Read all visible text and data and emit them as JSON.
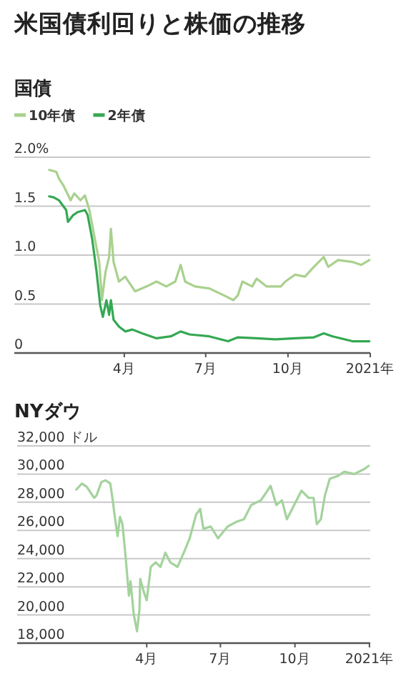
{
  "chart_data": [
    {
      "type": "line",
      "title": "米国債利回りと株価の推移",
      "subtitle": "国債",
      "legend": "top left",
      "grid": "y",
      "marker": "none",
      "line_style": "solid",
      "xlim": [
        "2019-11-30",
        "2021-01-01"
      ],
      "xticks": [
        {
          "value": "2020-04-01",
          "label": "4月"
        },
        {
          "value": "2020-07-01",
          "label": "7月"
        },
        {
          "value": "2020-10-01",
          "label": "10月"
        },
        {
          "value": "2021-01-01",
          "label": "2021年"
        }
      ],
      "ylim": [
        0,
        2.0
      ],
      "yticks": [
        {
          "value": 0,
          "label": "0"
        },
        {
          "value": 0.5,
          "label": "0.5"
        },
        {
          "value": 1.0,
          "label": "1.0"
        },
        {
          "value": 1.5,
          "label": "1.5"
        },
        {
          "value": 2.0,
          "label": "2.0%"
        }
      ],
      "series": [
        {
          "name": "10年債",
          "color": "#a9d18e",
          "x": [
            "2020-01-08",
            "2020-01-16",
            "2020-01-19",
            "2020-01-24",
            "2020-02-01",
            "2020-02-05",
            "2020-02-12",
            "2020-02-17",
            "2020-02-22",
            "2020-02-28",
            "2020-03-04",
            "2020-03-07",
            "2020-03-11",
            "2020-03-15",
            "2020-03-17",
            "2020-03-20",
            "2020-03-26",
            "2020-04-02",
            "2020-04-13",
            "2020-04-26",
            "2020-05-07",
            "2020-05-18",
            "2020-05-28",
            "2020-06-03",
            "2020-06-08",
            "2020-06-19",
            "2020-07-05",
            "2020-07-21",
            "2020-08-01",
            "2020-08-06",
            "2020-08-11",
            "2020-08-22",
            "2020-08-27",
            "2020-09-07",
            "2020-09-23",
            "2020-09-28",
            "2020-10-09",
            "2020-10-20",
            "2020-10-30",
            "2020-11-10",
            "2020-11-15",
            "2020-11-26",
            "2020-12-12",
            "2020-12-22",
            "2020-12-31"
          ],
          "values": [
            1.87,
            1.85,
            1.78,
            1.71,
            1.56,
            1.63,
            1.56,
            1.61,
            1.46,
            1.17,
            0.93,
            0.54,
            0.83,
            0.98,
            1.27,
            0.93,
            0.73,
            0.78,
            0.63,
            0.68,
            0.73,
            0.68,
            0.73,
            0.9,
            0.73,
            0.68,
            0.66,
            0.59,
            0.54,
            0.59,
            0.73,
            0.68,
            0.76,
            0.68,
            0.68,
            0.73,
            0.8,
            0.78,
            0.88,
            0.98,
            0.88,
            0.95,
            0.93,
            0.9,
            0.95
          ]
        },
        {
          "name": "2年債",
          "color": "#34a853",
          "x": [
            "2020-01-08",
            "2020-01-13",
            "2020-01-19",
            "2020-01-27",
            "2020-01-29",
            "2020-02-04",
            "2020-02-09",
            "2020-02-17",
            "2020-02-20",
            "2020-02-25",
            "2020-03-01",
            "2020-03-05",
            "2020-03-08",
            "2020-03-12",
            "2020-03-15",
            "2020-03-17",
            "2020-03-20",
            "2020-03-26",
            "2020-04-02",
            "2020-04-10",
            "2020-04-21",
            "2020-05-07",
            "2020-05-23",
            "2020-06-03",
            "2020-06-13",
            "2020-07-05",
            "2020-07-26",
            "2020-08-06",
            "2020-08-27",
            "2020-09-17",
            "2020-10-09",
            "2020-10-30",
            "2020-11-10",
            "2020-11-20",
            "2020-12-12",
            "2020-12-31"
          ],
          "values": [
            1.6,
            1.59,
            1.56,
            1.46,
            1.34,
            1.41,
            1.44,
            1.46,
            1.41,
            1.17,
            0.83,
            0.49,
            0.37,
            0.54,
            0.39,
            0.54,
            0.34,
            0.27,
            0.22,
            0.24,
            0.2,
            0.15,
            0.17,
            0.22,
            0.19,
            0.17,
            0.12,
            0.16,
            0.15,
            0.14,
            0.15,
            0.16,
            0.2,
            0.17,
            0.12,
            0.12
          ]
        }
      ]
    },
    {
      "type": "line",
      "title": "NYダウ",
      "grid": "y",
      "marker": "none",
      "line_style": "solid",
      "xlim": [
        "2019-10-24",
        "2021-01-02"
      ],
      "xticks": [
        {
          "value": "2020-04-01",
          "label": "4月"
        },
        {
          "value": "2020-07-01",
          "label": "7月"
        },
        {
          "value": "2020-10-01",
          "label": "10月"
        },
        {
          "value": "2021-01-01",
          "label": "2021年"
        }
      ],
      "ylim": [
        18000,
        32000
      ],
      "yticks": [
        {
          "value": 18000,
          "label": "18,000"
        },
        {
          "value": 20000,
          "label": "20,000"
        },
        {
          "value": 22000,
          "label": "22,000"
        },
        {
          "value": 24000,
          "label": "24,000"
        },
        {
          "value": 26000,
          "label": "26,000"
        },
        {
          "value": 28000,
          "label": "28,000"
        },
        {
          "value": 30000,
          "label": "30,000"
        },
        {
          "value": 32000,
          "label": "32,000 ドル"
        }
      ],
      "series": [
        {
          "color": "#a3d39c",
          "x": [
            "2020-01-05",
            "2020-01-12",
            "2020-01-18",
            "2020-01-27",
            "2020-01-30",
            "2020-02-05",
            "2020-02-10",
            "2020-02-16",
            "2020-02-19",
            "2020-02-22",
            "2020-02-25",
            "2020-02-28",
            "2020-03-02",
            "2020-03-06",
            "2020-03-10",
            "2020-03-12",
            "2020-03-16",
            "2020-03-20",
            "2020-03-23",
            "2020-03-24",
            "2020-03-28",
            "2020-04-01",
            "2020-04-06",
            "2020-04-12",
            "2020-04-18",
            "2020-04-24",
            "2020-04-30",
            "2020-05-09",
            "2020-05-18",
            "2020-05-24",
            "2020-06-01",
            "2020-06-06",
            "2020-06-10",
            "2020-06-19",
            "2020-06-28",
            "2020-07-10",
            "2020-07-21",
            "2020-07-30",
            "2020-08-08",
            "2020-08-20",
            "2020-09-01",
            "2020-09-08",
            "2020-09-15",
            "2020-09-21",
            "2020-09-30",
            "2020-10-09",
            "2020-10-18",
            "2020-10-24",
            "2020-10-28",
            "2020-11-02",
            "2020-11-07",
            "2020-11-13",
            "2020-11-22",
            "2020-12-01",
            "2020-12-13",
            "2020-12-25",
            "2020-12-31"
          ],
          "values": [
            28900,
            29330,
            29090,
            28310,
            28480,
            29430,
            29560,
            29330,
            28140,
            26790,
            25600,
            26960,
            26450,
            24080,
            21370,
            22390,
            20020,
            18840,
            20360,
            22560,
            21710,
            21040,
            23410,
            23740,
            23410,
            24420,
            23740,
            23410,
            24590,
            25440,
            27130,
            27530,
            26110,
            26280,
            25440,
            26280,
            26620,
            26790,
            27800,
            28140,
            29160,
            27800,
            28140,
            26790,
            27800,
            28820,
            28310,
            28310,
            26450,
            26790,
            28480,
            29670,
            29840,
            30170,
            30000,
            30340,
            30580
          ]
        }
      ]
    }
  ]
}
